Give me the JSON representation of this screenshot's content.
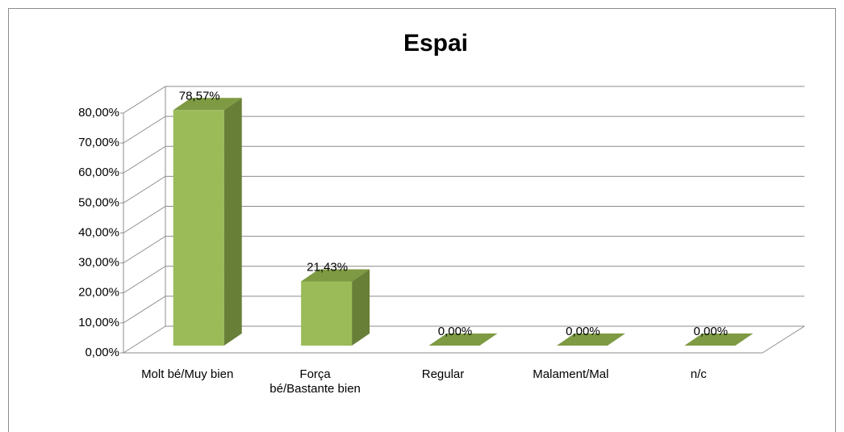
{
  "chart_data": {
    "type": "bar3d",
    "title": "Espai",
    "categories": [
      "Molt bé/Muy bien",
      "Força bé/Bastante bien",
      "Regular",
      "Malament/Mal",
      "n/c"
    ],
    "values": [
      78.57,
      21.43,
      0,
      0,
      0
    ],
    "value_labels": [
      "78,57%",
      "21,43%",
      "0,00%",
      "0,00%",
      "0,00%"
    ],
    "color": "#9bbb59",
    "ylim": [
      0,
      80
    ],
    "yticks": [
      {
        "value": 0,
        "label": "0,00%"
      },
      {
        "value": 10,
        "label": "10,00%"
      },
      {
        "value": 20,
        "label": "20,00%"
      },
      {
        "value": 30,
        "label": "30,00%"
      },
      {
        "value": 40,
        "label": "40,00%"
      },
      {
        "value": 50,
        "label": "50,00%"
      },
      {
        "value": 60,
        "label": "60,00%"
      },
      {
        "value": 70,
        "label": "70,00%"
      },
      {
        "value": 80,
        "label": "80,00%"
      }
    ],
    "grid": true
  }
}
